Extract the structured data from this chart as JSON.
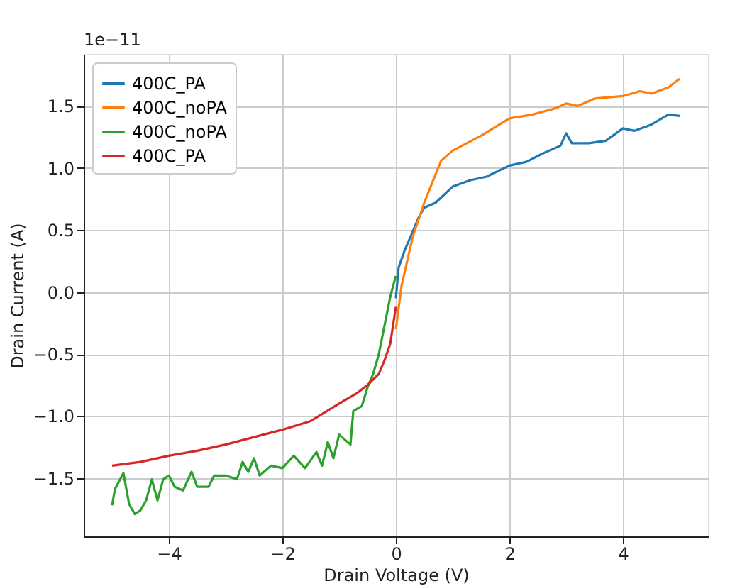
{
  "chart_data": {
    "type": "line",
    "xlabel": "Drain Voltage (V)",
    "ylabel": "Drain Current (A)",
    "annotations": [
      "1e−11"
    ],
    "xlim": [
      -5.5,
      5.5
    ],
    "xticks": [
      -4,
      -2,
      0,
      2,
      4
    ],
    "ylim": [
      -1.97,
      1.92
    ],
    "yticks": [
      {
        "value": -1.5,
        "label": "−1.5"
      },
      {
        "value": -1,
        "label": "−1.0"
      },
      {
        "value": -0.5,
        "label": "−0.5"
      },
      {
        "value": 0,
        "label": "0.0"
      },
      {
        "value": 0.5,
        "label": "0.5"
      },
      {
        "value": 1,
        "label": "1.0"
      },
      {
        "value": 1.5,
        "label": "1.5"
      }
    ],
    "grid": true,
    "legend": "top left",
    "line_style": "solid",
    "marker": "none",
    "series": [
      {
        "name": "400C_PA",
        "color": "#1f77b4",
        "x": [
          0,
          0.05,
          0.15,
          0.3,
          0.4,
          0.5,
          0.7,
          1.0,
          1.3,
          1.6,
          2.0,
          2.3,
          2.6,
          2.9,
          3.0,
          3.1,
          3.4,
          3.7,
          4.0,
          4.2,
          4.5,
          4.8,
          5.0
        ],
        "values": [
          -0.05,
          0.2,
          0.33,
          0.49,
          0.6,
          0.68,
          0.72,
          0.85,
          0.9,
          0.93,
          1.02,
          1.05,
          1.12,
          1.18,
          1.28,
          1.2,
          1.2,
          1.22,
          1.32,
          1.3,
          1.35,
          1.43,
          1.42
        ]
      },
      {
        "name": "400C_noPA",
        "color": "#ff7f0e",
        "x": [
          0,
          0.1,
          0.2,
          0.3,
          0.5,
          0.7,
          0.8,
          1.0,
          1.5,
          2.0,
          2.4,
          2.8,
          3.0,
          3.2,
          3.5,
          4.0,
          4.3,
          4.5,
          4.8,
          5.0
        ],
        "values": [
          -0.3,
          0.05,
          0.25,
          0.45,
          0.72,
          0.95,
          1.06,
          1.14,
          1.26,
          1.4,
          1.43,
          1.48,
          1.52,
          1.5,
          1.56,
          1.58,
          1.62,
          1.6,
          1.65,
          1.72
        ]
      },
      {
        "name": "400C_noPA",
        "color": "#2ca02c",
        "x": [
          -5,
          -4.95,
          -4.8,
          -4.7,
          -4.6,
          -4.5,
          -4.4,
          -4.3,
          -4.2,
          -4.1,
          -4.0,
          -3.9,
          -3.75,
          -3.6,
          -3.5,
          -3.3,
          -3.2,
          -3.0,
          -2.8,
          -2.7,
          -2.6,
          -2.5,
          -2.4,
          -2.2,
          -2.0,
          -1.8,
          -1.6,
          -1.4,
          -1.3,
          -1.2,
          -1.1,
          -1.0,
          -0.9,
          -0.8,
          -0.75,
          -0.6,
          -0.5,
          -0.4,
          -0.3,
          -0.2,
          -0.1,
          0.0
        ],
        "values": [
          -1.72,
          -1.59,
          -1.46,
          -1.71,
          -1.79,
          -1.76,
          -1.68,
          -1.51,
          -1.68,
          -1.51,
          -1.48,
          -1.57,
          -1.6,
          -1.45,
          -1.57,
          -1.57,
          -1.48,
          -1.48,
          -1.51,
          -1.37,
          -1.45,
          -1.34,
          -1.48,
          -1.4,
          -1.42,
          -1.32,
          -1.42,
          -1.29,
          -1.4,
          -1.21,
          -1.34,
          -1.15,
          -1.19,
          -1.23,
          -0.96,
          -0.92,
          -0.77,
          -0.66,
          -0.5,
          -0.27,
          -0.04,
          0.13
        ]
      },
      {
        "name": "400C_PA",
        "color": "#d62728",
        "x": [
          -5,
          -4.5,
          -4.0,
          -3.5,
          -3.0,
          -2.5,
          -2.0,
          -1.5,
          -1.0,
          -0.7,
          -0.5,
          -0.3,
          -0.2,
          -0.1,
          0.0
        ],
        "values": [
          -1.4,
          -1.37,
          -1.32,
          -1.28,
          -1.23,
          -1.17,
          -1.11,
          -1.04,
          -0.9,
          -0.82,
          -0.75,
          -0.66,
          -0.55,
          -0.42,
          -0.12
        ]
      }
    ]
  }
}
